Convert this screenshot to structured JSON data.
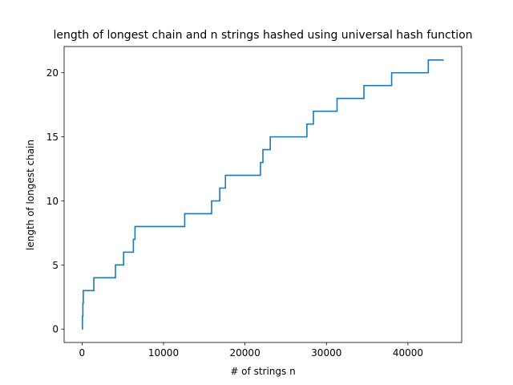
{
  "chart_data": {
    "type": "line",
    "title": "length of longest chain and n strings hashed using universal hash function",
    "xlabel": "# of strings n",
    "ylabel": "length of longest chain",
    "xlim": [
      -2200,
      46600
    ],
    "ylim": [
      -1.05,
      22.05
    ],
    "grid": false,
    "line_color": "#1f77b4",
    "x_ticks": [
      {
        "value": 0,
        "label": "0"
      },
      {
        "value": 10000,
        "label": "10000"
      },
      {
        "value": 20000,
        "label": "20000"
      },
      {
        "value": 30000,
        "label": "30000"
      },
      {
        "value": 40000,
        "label": "40000"
      }
    ],
    "y_ticks": [
      {
        "value": 0,
        "label": "0"
      },
      {
        "value": 5,
        "label": "5"
      },
      {
        "value": 10,
        "label": "10"
      },
      {
        "value": 15,
        "label": "15"
      },
      {
        "value": 20,
        "label": "20"
      }
    ],
    "series": [
      {
        "x": [
          0,
          50,
          100,
          150,
          1450,
          4100,
          5100,
          6300,
          6500,
          12600,
          15900,
          16900,
          17600,
          21900,
          22200,
          23100,
          27600,
          28400,
          31300,
          34600,
          38000,
          42500,
          44400
        ],
        "y": [
          0,
          1,
          2,
          3,
          4,
          5,
          6,
          7,
          8,
          9,
          10,
          11,
          12,
          13,
          14,
          15,
          16,
          17,
          18,
          19,
          20,
          21,
          21
        ]
      }
    ]
  }
}
